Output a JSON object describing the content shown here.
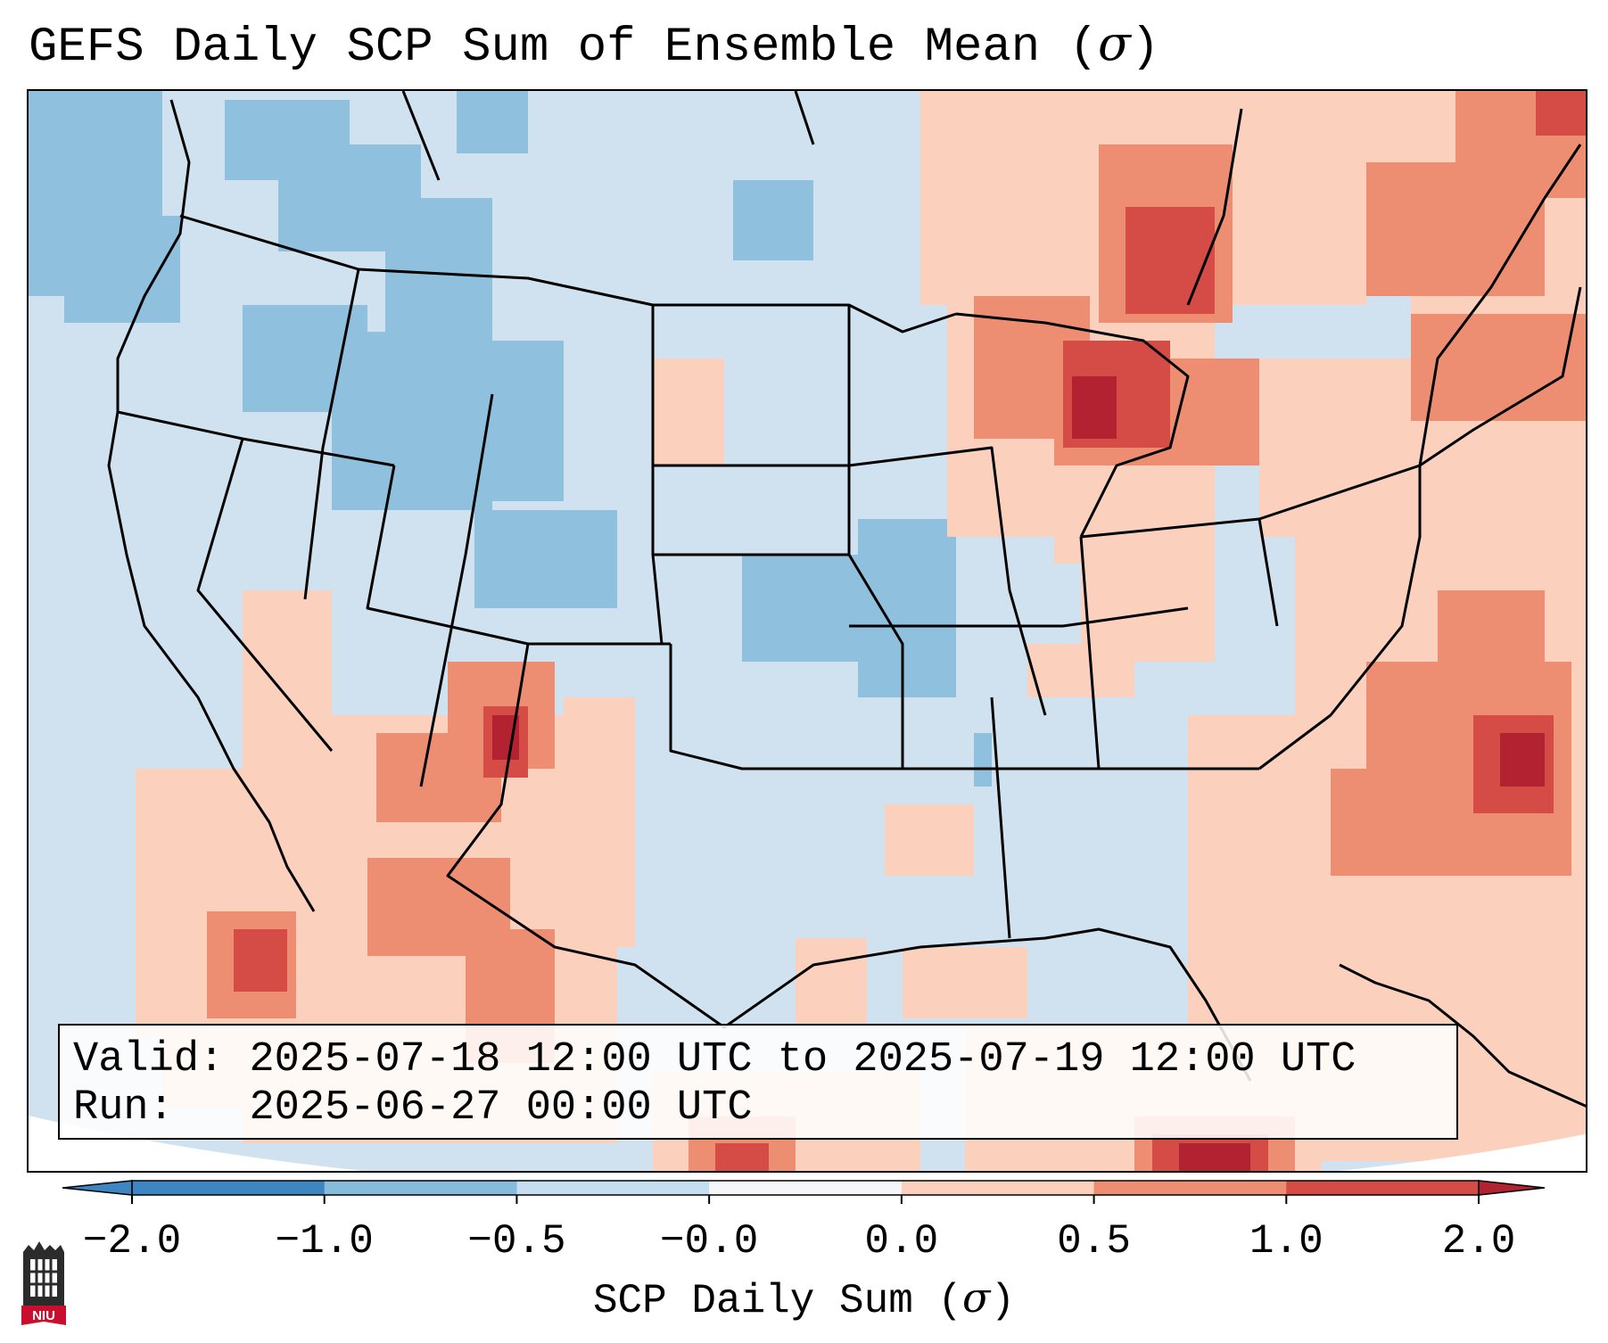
{
  "title": "GEFS Daily SCP Sum of Ensemble Mean (",
  "title_symbol": "σ",
  "title_close": ")",
  "infobox": {
    "valid_label": "Valid:",
    "valid_value": "2025-07-18 12:00 UTC to 2025-07-19 12:00 UTC",
    "run_label": "Run:",
    "run_value": "2025-06-27 00:00 UTC"
  },
  "colorbar": {
    "label": "SCP Daily Sum (",
    "label_symbol": "σ",
    "label_close": ")",
    "ticks": [
      "−2.0",
      "−1.0",
      "−0.5",
      "−0.0",
      "0.0",
      "0.5",
      "1.0",
      "2.0"
    ],
    "colors": [
      "#3d86c2",
      "#86bbdc",
      "#c5def0",
      "#f4f6f8",
      "#fbd0bd",
      "#ed8e73",
      "#d44c45"
    ],
    "extend_low_color": "#3d86c2",
    "extend_high_color": "#b32231"
  },
  "map": {
    "background_color": "#d0e2f0",
    "land_line_color": "#000000"
  },
  "logo": {
    "text": "NIU"
  }
}
